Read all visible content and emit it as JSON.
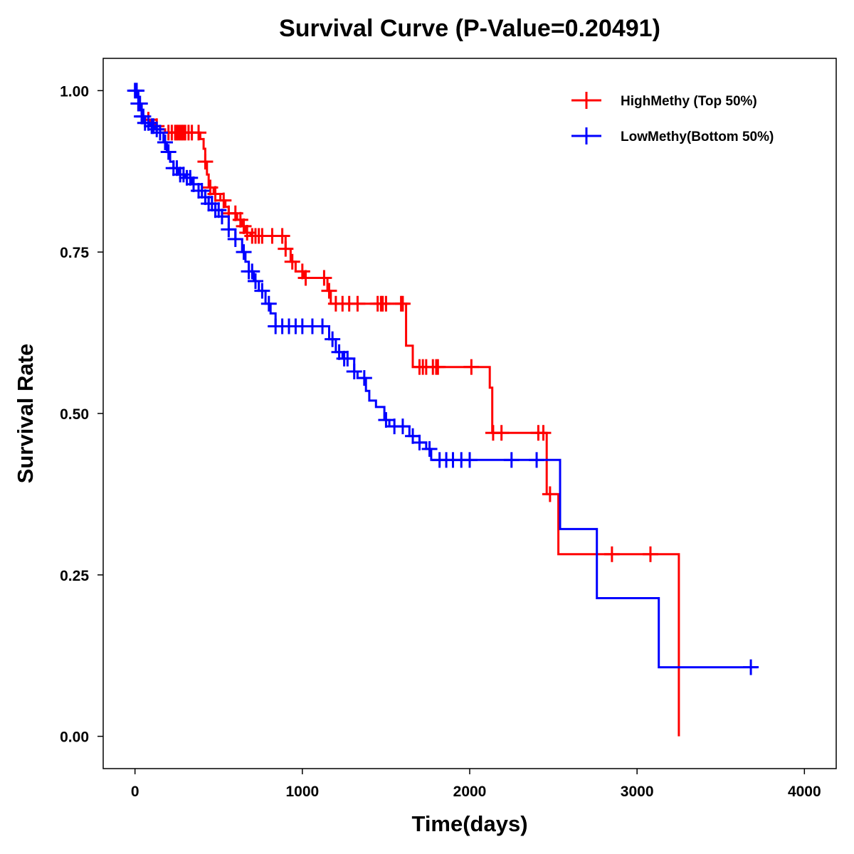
{
  "chart_data": {
    "type": "line",
    "subtype": "kaplan-meier",
    "title": "Survival Curve (P-Value=0.20491)",
    "xlabel": "Time(days)",
    "ylabel": "Survival Rate",
    "xlim": [
      -190,
      4190
    ],
    "ylim": [
      -0.05,
      1.05
    ],
    "xticks": [
      0,
      1000,
      2000,
      3000,
      4000
    ],
    "xtick_labels": [
      "0",
      "1000",
      "2000",
      "3000",
      "4000"
    ],
    "yticks": [
      0.0,
      0.25,
      0.5,
      0.75,
      1.0
    ],
    "ytick_labels": [
      "0.00",
      "0.25",
      "0.50",
      "0.75",
      "1.00"
    ],
    "legend_position": "top-right",
    "series": [
      {
        "name": "HighMethy (Top 50%)",
        "color": "#ff0000",
        "steps": [
          [
            0,
            0.98
          ],
          [
            20,
            0.97
          ],
          [
            40,
            0.96
          ],
          [
            60,
            0.955
          ],
          [
            90,
            0.95
          ],
          [
            120,
            0.945
          ],
          [
            150,
            0.94
          ],
          [
            180,
            0.935
          ],
          [
            390,
            0.925
          ],
          [
            410,
            0.91
          ],
          [
            420,
            0.89
          ],
          [
            430,
            0.87
          ],
          [
            440,
            0.85
          ],
          [
            470,
            0.84
          ],
          [
            510,
            0.83
          ],
          [
            540,
            0.82
          ],
          [
            560,
            0.81
          ],
          [
            610,
            0.8
          ],
          [
            640,
            0.79
          ],
          [
            660,
            0.78
          ],
          [
            690,
            0.775
          ],
          [
            900,
            0.755
          ],
          [
            930,
            0.735
          ],
          [
            960,
            0.72
          ],
          [
            1010,
            0.71
          ],
          [
            1150,
            0.69
          ],
          [
            1170,
            0.67
          ],
          [
            1620,
            0.605
          ],
          [
            1660,
            0.572
          ],
          [
            2120,
            0.54
          ],
          [
            2135,
            0.47
          ],
          [
            2460,
            0.375
          ],
          [
            2530,
            0.282
          ],
          [
            3250,
            0.0
          ]
        ],
        "end_x": 3250,
        "censor_times": [
          80,
          130,
          200,
          220,
          240,
          250,
          260,
          270,
          280,
          290,
          300,
          320,
          340,
          380,
          420,
          450,
          480,
          530,
          560,
          600,
          630,
          650,
          670,
          700,
          720,
          740,
          760,
          820,
          880,
          900,
          940,
          1000,
          1020,
          1130,
          1160,
          1200,
          1240,
          1280,
          1330,
          1450,
          1470,
          1480,
          1500,
          1590,
          1600,
          1700,
          1720,
          1740,
          1780,
          1800,
          1810,
          2010,
          2140,
          2190,
          2410,
          2440,
          2480,
          2850,
          3080
        ]
      },
      {
        "name": "LowMethy(Bottom 50%)",
        "color": "#0000ff",
        "steps": [
          [
            0,
            1.0
          ],
          [
            20,
            0.98
          ],
          [
            40,
            0.96
          ],
          [
            60,
            0.95
          ],
          [
            90,
            0.945
          ],
          [
            120,
            0.94
          ],
          [
            150,
            0.935
          ],
          [
            170,
            0.92
          ],
          [
            190,
            0.905
          ],
          [
            210,
            0.89
          ],
          [
            230,
            0.88
          ],
          [
            260,
            0.87
          ],
          [
            300,
            0.865
          ],
          [
            340,
            0.855
          ],
          [
            380,
            0.845
          ],
          [
            420,
            0.835
          ],
          [
            440,
            0.825
          ],
          [
            480,
            0.815
          ],
          [
            520,
            0.805
          ],
          [
            560,
            0.785
          ],
          [
            600,
            0.77
          ],
          [
            640,
            0.75
          ],
          [
            660,
            0.735
          ],
          [
            680,
            0.72
          ],
          [
            710,
            0.705
          ],
          [
            740,
            0.69
          ],
          [
            780,
            0.67
          ],
          [
            810,
            0.655
          ],
          [
            840,
            0.635
          ],
          [
            1160,
            0.615
          ],
          [
            1200,
            0.595
          ],
          [
            1240,
            0.585
          ],
          [
            1310,
            0.565
          ],
          [
            1330,
            0.555
          ],
          [
            1380,
            0.535
          ],
          [
            1400,
            0.52
          ],
          [
            1440,
            0.51
          ],
          [
            1490,
            0.49
          ],
          [
            1520,
            0.48
          ],
          [
            1640,
            0.465
          ],
          [
            1700,
            0.455
          ],
          [
            1740,
            0.445
          ],
          [
            1770,
            0.428
          ],
          [
            2540,
            0.321
          ],
          [
            2760,
            0.214
          ],
          [
            3130,
            0.107
          ]
        ],
        "end_x": 3720,
        "censor_times": [
          0,
          10,
          20,
          30,
          40,
          50,
          60,
          80,
          100,
          110,
          130,
          150,
          180,
          200,
          230,
          250,
          270,
          290,
          310,
          330,
          350,
          380,
          400,
          420,
          440,
          460,
          480,
          500,
          520,
          560,
          600,
          650,
          680,
          700,
          720,
          760,
          800,
          840,
          880,
          920,
          960,
          1000,
          1060,
          1120,
          1180,
          1220,
          1250,
          1270,
          1310,
          1370,
          1500,
          1550,
          1600,
          1660,
          1700,
          1760,
          1820,
          1860,
          1900,
          1950,
          2000,
          2250,
          2400,
          3680
        ]
      }
    ]
  }
}
